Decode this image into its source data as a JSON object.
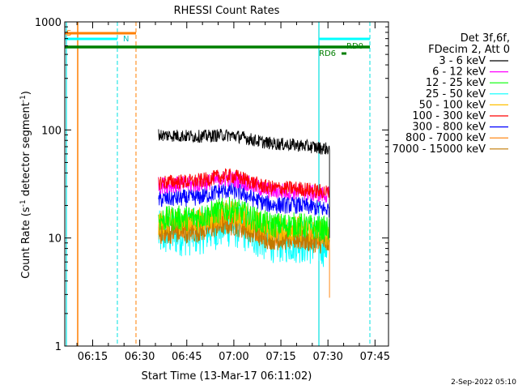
{
  "chart_data": {
    "type": "line",
    "title": "RHESSI Count Rates",
    "xlabel": "Start Time (13-Mar-17 06:11:02)",
    "ylabel_main": "Count Rate (s",
    "ylabel_sup1": "-1",
    "ylabel_mid": " detector segment",
    "ylabel_sup2": "-1",
    "ylabel_end": ")",
    "y_scale": "log",
    "ylim": [
      1,
      1000
    ],
    "y_ticks": [
      {
        "value": 1,
        "label": "1"
      },
      {
        "value": 10,
        "label": "10"
      },
      {
        "value": 100,
        "label": "100"
      },
      {
        "value": 1000,
        "label": "1000"
      }
    ],
    "x_range_min": [
      6.1,
      49.3
    ],
    "x_ticks": [
      {
        "value": 15,
        "label": "06:15"
      },
      {
        "value": 30,
        "label": "06:30"
      },
      {
        "value": 45,
        "label": "06:45"
      },
      {
        "value": 60,
        "label": "07:00"
      },
      {
        "value": 75,
        "label": "07:15"
      },
      {
        "value": 90,
        "label": "07:30"
      },
      {
        "value": 105,
        "label": "07:45"
      }
    ],
    "legend": {
      "placement": "right",
      "header1": "Det 3f,6f,",
      "header2": "FDecim 2, Att 0"
    },
    "series": [
      {
        "name": "3 - 6 keV",
        "color": "#000000",
        "base": 90,
        "bump": 0.1,
        "noise": 0.06,
        "end": 65
      },
      {
        "name": "6 - 12 keV",
        "color": "#ff00ff",
        "base": 31,
        "bump": 0.22,
        "noise": 0.08,
        "end": 22
      },
      {
        "name": "12 - 25 keV",
        "color": "#00ff00",
        "base": 15,
        "bump": 0.3,
        "noise": 0.12,
        "end": 11
      },
      {
        "name": "25 - 50 keV",
        "color": "#00ffff",
        "base": 11,
        "bump": 0.3,
        "noise": 0.22,
        "end": 8
      },
      {
        "name": "50 - 100 keV",
        "color": "#ffc000",
        "base": 14,
        "bump": 0.3,
        "noise": 0.12,
        "end": 11
      },
      {
        "name": "100 - 300 keV",
        "color": "#ff0000",
        "base": 33,
        "bump": 0.22,
        "noise": 0.07,
        "end": 24
      },
      {
        "name": "300 - 800 keV",
        "color": "#0000ff",
        "base": 23,
        "bump": 0.28,
        "noise": 0.08,
        "end": 16
      },
      {
        "name": "800 - 7000 keV",
        "color": "#ff7f00",
        "base": 12,
        "bump": 0.3,
        "noise": 0.11,
        "end": 9
      },
      {
        "name": "7000 - 15000 keV",
        "color": "#c07800",
        "base": 11,
        "bump": 0.28,
        "noise": 0.1,
        "end": 8
      }
    ],
    "data_start_time": 35.5,
    "data_end_time": 90.5,
    "annotations": {
      "saa_label": "S",
      "night_label": "N",
      "rd0_label": "RD0",
      "rd6_label": "RD6"
    }
  },
  "footer": {
    "timestamp": "2-Sep-2022 05:10"
  }
}
